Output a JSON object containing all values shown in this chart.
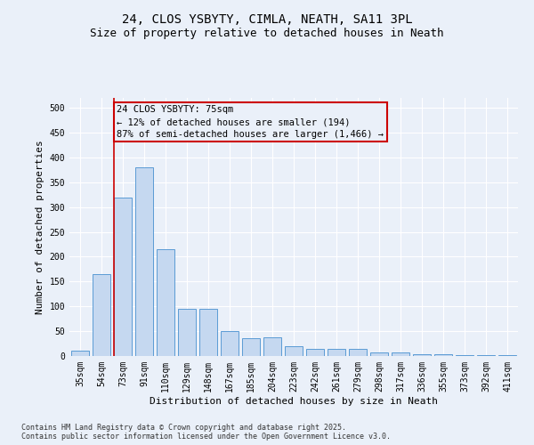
{
  "title1": "24, CLOS YSBYTY, CIMLA, NEATH, SA11 3PL",
  "title2": "Size of property relative to detached houses in Neath",
  "xlabel": "Distribution of detached houses by size in Neath",
  "ylabel": "Number of detached properties",
  "categories": [
    "35sqm",
    "54sqm",
    "73sqm",
    "91sqm",
    "110sqm",
    "129sqm",
    "148sqm",
    "167sqm",
    "185sqm",
    "204sqm",
    "223sqm",
    "242sqm",
    "261sqm",
    "279sqm",
    "298sqm",
    "317sqm",
    "336sqm",
    "355sqm",
    "373sqm",
    "392sqm",
    "411sqm"
  ],
  "values": [
    10,
    165,
    320,
    380,
    215,
    95,
    95,
    50,
    35,
    38,
    20,
    15,
    15,
    15,
    8,
    8,
    3,
    3,
    1,
    1,
    1
  ],
  "bar_color": "#c5d8f0",
  "bar_edge_color": "#5b9bd5",
  "subject_line_color": "#cc0000",
  "annotation_text": "24 CLOS YSBYTY: 75sqm\n← 12% of detached houses are smaller (194)\n87% of semi-detached houses are larger (1,466) →",
  "ylim": [
    0,
    520
  ],
  "yticks": [
    0,
    50,
    100,
    150,
    200,
    250,
    300,
    350,
    400,
    450,
    500
  ],
  "footer": "Contains HM Land Registry data © Crown copyright and database right 2025.\nContains public sector information licensed under the Open Government Licence v3.0.",
  "bg_color": "#eaf0f9",
  "grid_color": "#ffffff",
  "title1_fontsize": 10,
  "title2_fontsize": 9,
  "axis_label_fontsize": 8,
  "tick_fontsize": 7,
  "footer_fontsize": 6,
  "annotation_fontsize": 7.5
}
